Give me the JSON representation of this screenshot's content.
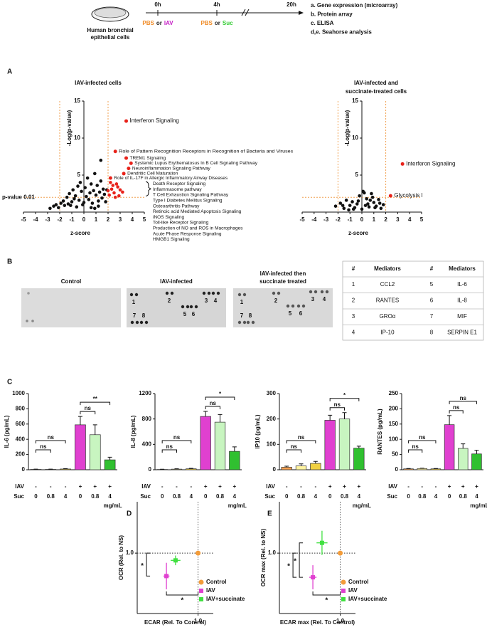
{
  "schematic": {
    "cell_label": [
      "Human bronchial",
      "epithelial cells"
    ],
    "timepoints": [
      {
        "label": "0h",
        "treatment": [
          {
            "text": "PBS",
            "color": "#f08a24"
          },
          {
            "text": "or",
            "color": "#222222"
          },
          {
            "text": "IAV",
            "color": "#c51fc5"
          }
        ]
      },
      {
        "label": "4h",
        "treatment": [
          {
            "text": "PBS",
            "color": "#f08a24"
          },
          {
            "text": "or",
            "color": "#222222"
          },
          {
            "text": "Suc",
            "color": "#33cc33"
          }
        ]
      },
      {
        "label": "20h"
      }
    ],
    "analyses": [
      "a. Gene expression (microarray)",
      "b. Protein array",
      "c. ELISA",
      "d,e. Seahorse analysis"
    ]
  },
  "panel_labels": [
    "A",
    "B",
    "C",
    "D",
    "E"
  ],
  "blot": {
    "panels": [
      {
        "title": [
          "Control"
        ],
        "spots": []
      },
      {
        "title": [
          "IAV-infected"
        ],
        "spots": [
          "1",
          "2",
          "3",
          "4",
          "5",
          "6",
          "7",
          "8"
        ]
      },
      {
        "title": [
          "IAV-infected then",
          "succinate treated"
        ],
        "spots": [
          "1",
          "2",
          "3",
          "4",
          "5",
          "6",
          "7",
          "8"
        ]
      }
    ]
  },
  "table": {
    "header": [
      "#",
      "Mediators",
      "#",
      "Mediators"
    ],
    "rows": [
      [
        "1",
        "CCL2",
        "5",
        "IL-6"
      ],
      [
        "2",
        "RANTES",
        "6",
        "IL-8"
      ],
      [
        "3",
        "GROα",
        "7",
        "MIF"
      ],
      [
        "4",
        "IP-10",
        "8",
        "SERPIN E1"
      ]
    ]
  },
  "chart_data": [
    {
      "type": "scatter",
      "title": "IAV-infected cells",
      "x_label": "z-score",
      "y_label": "-Log(p-value)",
      "xlim": [
        -5,
        5
      ],
      "xticks": [
        -5,
        -4,
        -3,
        -2,
        -1,
        0,
        1,
        2,
        3,
        4,
        5
      ],
      "ylim": [
        0,
        15
      ],
      "yticks": [
        5,
        10,
        15
      ],
      "vlines": [
        -2,
        2
      ],
      "threshold": {
        "y": 2,
        "label": "p-value 0.01"
      },
      "series": [
        {
          "color": "#111111",
          "x": [
            -2.8,
            -2.5,
            -2.3,
            -2.1,
            -1.9,
            -1.7,
            -1.6,
            -1.4,
            -1.3,
            -1.2,
            -1.0,
            -0.9,
            -0.8,
            -0.7,
            -0.6,
            -0.5,
            -0.4,
            -0.3,
            -0.2,
            -0.1,
            0,
            0.1,
            0.2,
            0.3,
            0.4,
            0.5,
            0.6,
            0.7,
            0.8,
            0.9,
            1.0,
            1.1,
            1.2,
            1.3,
            1.4,
            1.5,
            1.6,
            1.7,
            1.8,
            1.9,
            -1.1,
            0.6,
            1.2,
            0.9,
            1.4
          ],
          "values": [
            0.5,
            0.8,
            1.0,
            0.6,
            1.2,
            1.5,
            0.9,
            2.0,
            1.1,
            2.5,
            1.4,
            3.0,
            1.8,
            2.2,
            0.7,
            3.5,
            1.6,
            4.0,
            2.8,
            1.0,
            1.3,
            3.3,
            2.1,
            4.6,
            1.7,
            2.6,
            3.8,
            1.2,
            2.9,
            5.2,
            2.3,
            3.6,
            1.5,
            2.7,
            4.2,
            1.9,
            3.1,
            2.4,
            1.4,
            3.0,
            0.9,
            0.6,
            0.8,
            0.5,
            7.0
          ]
        },
        {
          "color": "#e8221a",
          "x": [
            2.1,
            2.3,
            2.5,
            2.7,
            2.9,
            3.0,
            2.2,
            2.6,
            2.8,
            3.2,
            2.4,
            2.0
          ],
          "values": [
            2.3,
            3.1,
            2.6,
            3.8,
            2.2,
            3.0,
            4.0,
            2.0,
            3.4,
            2.7,
            3.6,
            2.9
          ]
        }
      ],
      "annotation_color": "#e8221a",
      "annotations": [
        {
          "text": "Interferon Signaling",
          "x": 3.5,
          "y": 12.3
        },
        {
          "text": "Role of Pattern Recognition Receptors in Recognition of Bacteria and Viruses",
          "x": 2.6,
          "y": 8.2
        },
        {
          "text": "TREM1 Signaling",
          "x": 3.5,
          "y": 7.3
        },
        {
          "text": "Systemic Lupus Erythematosus In B Cell Signaling Pathway",
          "x": 3.9,
          "y": 6.6
        },
        {
          "text": "Neuroinflammation Signaling Pathway",
          "x": 3.7,
          "y": 5.9
        },
        {
          "text": "Dendritic Cell Maturation",
          "x": 3.3,
          "y": 5.2
        },
        {
          "text": "Role of IL-17F in Allergic Inflammatory Airway Diseases",
          "x": 2.2,
          "y": 4.6
        }
      ],
      "group_labels": [
        "Death Receptor Signaling",
        "Inflammasome pathway",
        "T Cell Exhaustion Signaling Pathway",
        "Type I Diabetes Mellitus Signaling",
        "Osteoarthritis Pathway",
        "Retinoic acid Mediated Apoptosis Signaling",
        "iNOS Signaling",
        "Toll-like Receptor Signaling",
        "Production of NO and ROS in Macrophages",
        "Acute Phase Response Signaling",
        "HMGB1 Signaling"
      ]
    },
    {
      "type": "scatter",
      "title": [
        "IAV-infected and",
        "succinate-treated cells"
      ],
      "x_label": "z-score",
      "y_label": "-Log(p-value)",
      "xlim": [
        -5,
        5
      ],
      "xticks": [
        -5,
        -4,
        -3,
        -2,
        -1,
        0,
        1,
        2,
        3,
        4,
        5
      ],
      "ylim": [
        0,
        15
      ],
      "yticks": [
        5,
        10,
        15
      ],
      "vlines": [
        -2,
        2
      ],
      "threshold": {
        "y": 2
      },
      "series": [
        {
          "color": "#111111",
          "x": [
            -2.2,
            -1.8,
            -1.5,
            -1.3,
            -1.0,
            -0.8,
            -0.6,
            -0.4,
            -0.2,
            0,
            0.2,
            0.4,
            0.6,
            0.8,
            1.0,
            1.2,
            1.4,
            1.6,
            1.8,
            -1.1,
            -0.3,
            0.3,
            0.9,
            1.5,
            -0.7,
            0.5,
            1.1,
            -1.6,
            0.1,
            0.7
          ],
          "values": [
            0.8,
            1.2,
            0.5,
            1.6,
            0.9,
            1.4,
            0.6,
            1.1,
            2.2,
            0.4,
            2.6,
            1.8,
            0.7,
            2.5,
            1.3,
            0.8,
            1.7,
            0.5,
            1.0,
            0.3,
            1.5,
            0.9,
            2.0,
            1.2,
            0.4,
            1.1,
            0.6,
            0.9,
            2.8,
            1.6
          ]
        }
      ],
      "annotation_color": "#e8221a",
      "annotations": [
        {
          "text": "Interferon Signaling",
          "x": 3.4,
          "y": 6.5
        },
        {
          "text": "Glycolysis I",
          "x": 2.4,
          "y": 2.2
        }
      ]
    },
    {
      "type": "bar",
      "y_label": "IL-6 (pg/mL)",
      "ylim": [
        0,
        1000
      ],
      "yticks": [
        0,
        200,
        400,
        600,
        800,
        1000
      ],
      "values": [
        5,
        5,
        10,
        590,
        460,
        130
      ],
      "errors": [
        3,
        3,
        5,
        110,
        130,
        35
      ],
      "colors": [
        "#f5a050",
        "#fff3a0",
        "#f0d040",
        "#e040d0",
        "#c8f5c0",
        "#30c030"
      ],
      "rows": [
        {
          "label": "IAV",
          "values": [
            "-",
            "-",
            "-",
            "+",
            "+",
            "+"
          ]
        },
        {
          "label": "Suc",
          "values": [
            "0",
            "0.8",
            "4",
            "0",
            "0.8",
            "4"
          ]
        }
      ],
      "unit": "mg/mL",
      "significance": [
        "ns",
        "ns",
        "ns",
        "**"
      ]
    },
    {
      "type": "bar",
      "y_label": "IL-8 (pg/mL)",
      "ylim": [
        0,
        1200
      ],
      "yticks": [
        0,
        400,
        800,
        1200
      ],
      "values": [
        5,
        10,
        15,
        840,
        750,
        290
      ],
      "errors": [
        3,
        5,
        8,
        80,
        120,
        70
      ],
      "colors": [
        "#f5a050",
        "#fff3a0",
        "#f0d040",
        "#e040d0",
        "#c8f5c0",
        "#30c030"
      ],
      "rows": [
        {
          "label": "IAV",
          "values": [
            "-",
            "-",
            "-",
            "+",
            "+",
            "+"
          ]
        },
        {
          "label": "Suc",
          "values": [
            "0",
            "0.8",
            "4",
            "0",
            "0.8",
            "4"
          ]
        }
      ],
      "unit": "mg/mL",
      "significance": [
        "ns",
        "ns",
        "ns",
        "*"
      ]
    },
    {
      "type": "bar",
      "y_label": "IP10 (pg/mL)",
      "ylim": [
        0,
        300
      ],
      "yticks": [
        0,
        100,
        200,
        300
      ],
      "values": [
        10,
        15,
        25,
        195,
        200,
        85
      ],
      "errors": [
        4,
        8,
        8,
        20,
        25,
        8
      ],
      "colors": [
        "#f5a050",
        "#fff3a0",
        "#f0d040",
        "#e040d0",
        "#c8f5c0",
        "#30c030"
      ],
      "rows": [
        {
          "label": "IAV",
          "values": [
            "-",
            "-",
            "-",
            "+",
            "+",
            "+"
          ]
        },
        {
          "label": "Suc",
          "values": [
            "0",
            "0.8",
            "4",
            "0",
            "0.8",
            "4"
          ]
        }
      ],
      "unit": "mg/mL",
      "significance": [
        "ns",
        "ns",
        "ns",
        "*"
      ]
    },
    {
      "type": "bar",
      "y_label": "RANTES (pg/mL)",
      "ylim": [
        0,
        250
      ],
      "yticks": [
        0,
        50,
        100,
        150,
        200,
        250
      ],
      "values": [
        3,
        4,
        3,
        148,
        70,
        52
      ],
      "errors": [
        1,
        1,
        1,
        30,
        15,
        12
      ],
      "colors": [
        "#f5a050",
        "#fff3a0",
        "#f0d040",
        "#e040d0",
        "#c8f5c0",
        "#30c030"
      ],
      "rows": [
        {
          "label": "IAV",
          "values": [
            "-",
            "-",
            "-",
            "+",
            "+",
            "+"
          ]
        },
        {
          "label": "Suc",
          "values": [
            "0",
            "0.8",
            "4",
            "0",
            "0.8",
            "4"
          ]
        }
      ],
      "unit": "mg/mL",
      "significance": [
        "ns",
        "ns",
        "ns",
        "ns"
      ]
    },
    {
      "type": "scatter",
      "x_label": "ECAR (Rel. To Control)",
      "y_label": "OCR (Rel. to NS)",
      "xlim": [
        0,
        1.25
      ],
      "xticks": [
        {
          "value": 1,
          "label": "1.0"
        }
      ],
      "ylim": [
        0,
        1.85
      ],
      "yticks": [
        {
          "value": 1,
          "label": "1.0"
        }
      ],
      "grid": true,
      "series": [
        {
          "name": "Control",
          "color": "#f39c3a",
          "marker": "circle",
          "x": [
            1.0
          ],
          "values": [
            1.0
          ]
        },
        {
          "name": "IAV",
          "color": "#e040d0",
          "marker": "square",
          "x": [
            0.48
          ],
          "values": [
            0.62
          ],
          "xerr": [
            0.05
          ],
          "yerr": [
            0.22
          ]
        },
        {
          "name": "IAV+succinate",
          "color": "#40e040",
          "marker": "square",
          "x": [
            0.63
          ],
          "values": [
            0.88
          ],
          "xerr": [
            0.08
          ],
          "yerr": [
            0.08
          ]
        }
      ],
      "significance": [
        "*",
        "*"
      ]
    },
    {
      "type": "scatter",
      "x_label": "ECAR max (Rel. To Control)",
      "y_label": "OCR max (Rel. to NS)",
      "xlim": [
        0,
        1.25
      ],
      "xticks": [
        {
          "value": 1,
          "label": "1.0"
        }
      ],
      "ylim": [
        0,
        1.85
      ],
      "yticks": [
        {
          "value": 1,
          "label": "1.0"
        }
      ],
      "grid": true,
      "series": [
        {
          "name": "Control",
          "color": "#f39c3a",
          "marker": "circle",
          "x": [
            1.0
          ],
          "values": [
            1.0
          ]
        },
        {
          "name": "IAV",
          "color": "#e040d0",
          "marker": "square",
          "x": [
            0.55
          ],
          "values": [
            0.6
          ],
          "xerr": [
            0.06
          ],
          "yerr": [
            0.2
          ]
        },
        {
          "name": "IAV+succinate",
          "color": "#40e040",
          "marker": "square",
          "x": [
            0.7
          ],
          "values": [
            1.17
          ],
          "xerr": [
            0.09
          ],
          "yerr": [
            0.2
          ]
        }
      ],
      "significance": [
        "*",
        "*",
        "*"
      ]
    }
  ]
}
